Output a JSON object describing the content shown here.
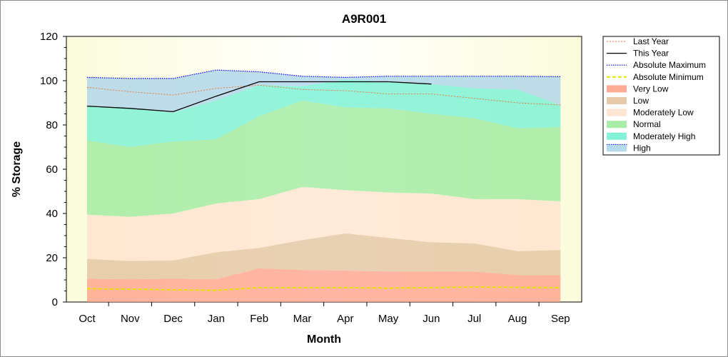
{
  "chart_data": {
    "type": "area",
    "title": "A9R001",
    "xlabel": "Month",
    "ylabel": "% Storage",
    "ylim": [
      0,
      120
    ],
    "yticks": [
      0,
      20,
      40,
      60,
      80,
      100,
      120
    ],
    "categories": [
      "Oct",
      "Nov",
      "Dec",
      "Jan",
      "Feb",
      "Mar",
      "Apr",
      "May",
      "Jun",
      "Jul",
      "Aug",
      "Sep"
    ],
    "legend_position": "right",
    "grid": false,
    "band_edges": {
      "absolute_minimum": [
        6,
        5.8,
        5.5,
        5.3,
        6.5,
        6.5,
        6.5,
        6.3,
        6.5,
        6.8,
        6.6,
        6.5
      ],
      "very_low": [
        10.5,
        10.3,
        10.5,
        10.3,
        15.2,
        14.5,
        14.2,
        13.8,
        13.8,
        13.8,
        12.2,
        12.0
      ],
      "low": [
        19.5,
        18.5,
        18.8,
        22.5,
        24.5,
        28.0,
        31.0,
        29.0,
        27.0,
        26.5,
        23.0,
        23.5
      ],
      "moderately_low": [
        39.5,
        38.5,
        40.0,
        44.5,
        46.5,
        52.0,
        50.5,
        49.5,
        49.0,
        46.5,
        46.5,
        45.5
      ],
      "normal": [
        73.0,
        70.0,
        72.5,
        73.5,
        84.0,
        91.0,
        88.0,
        87.5,
        85.0,
        83.0,
        78.5,
        79.0
      ],
      "moderately_high": [
        88.5,
        87.5,
        85.5,
        91.0,
        98.0,
        97.5,
        100.5,
        99.5,
        98.5,
        96.5,
        96.0,
        89.0
      ],
      "absolute_maximum": [
        101.5,
        101.0,
        101.0,
        104.8,
        104.0,
        102.0,
        101.5,
        102.0,
        102.0,
        102.0,
        102.0,
        101.8
      ]
    },
    "series": [
      {
        "name": "Last Year",
        "color": "#e07a3c",
        "style": "dotted",
        "x": [
          "Oct",
          "Nov",
          "Dec",
          "Jan",
          "Feb",
          "Mar",
          "Apr",
          "May",
          "Jun",
          "Jul",
          "Aug",
          "Sep"
        ],
        "values": [
          97.0,
          95.0,
          93.5,
          96.5,
          98.0,
          96.0,
          95.5,
          94.0,
          94.0,
          92.0,
          90.0,
          89.0
        ]
      },
      {
        "name": "This Year",
        "color": "#000000",
        "style": "solid",
        "x": [
          "Oct",
          "Nov",
          "Dec",
          "Jan",
          "Feb",
          "Mar",
          "Apr",
          "May",
          "Jun"
        ],
        "values": [
          88.5,
          87.5,
          86.0,
          93.0,
          99.5,
          99.5,
          99.5,
          99.5,
          98.5
        ]
      },
      {
        "name": "Absolute Maximum",
        "color": "#0000ff",
        "style": "dotted"
      },
      {
        "name": "Absolute Minimum",
        "color": "#e6e600",
        "style": "dashed"
      },
      {
        "name": "Very Low",
        "color": "#ff9c84"
      },
      {
        "name": "Low",
        "color": "#e0c09a"
      },
      {
        "name": "Moderately Low",
        "color": "#ffe2cc"
      },
      {
        "name": "Normal",
        "color": "#98ea98"
      },
      {
        "name": "Moderately High",
        "color": "#6ff0d2"
      },
      {
        "name": "High",
        "color": "#a8d2ea"
      }
    ],
    "colors": {
      "plot_bg": "#fcfce6",
      "very_low": "#ff9c84",
      "low": "#e0c09a",
      "moderately_low": "#ffe2cc",
      "normal": "#98ea98",
      "moderately_high": "#6ff0d2",
      "high": "#a8d2ea",
      "last_year": "#e07a3c",
      "this_year": "#000000",
      "abs_max": "#0000ff",
      "abs_min": "#e6e600"
    }
  }
}
